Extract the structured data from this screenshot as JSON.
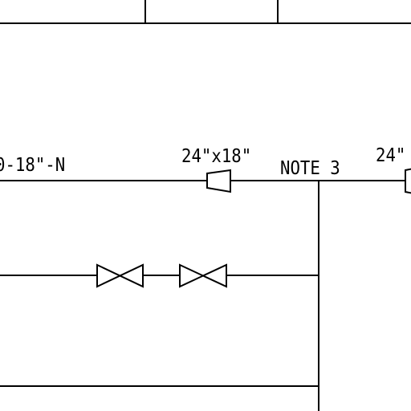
{
  "diagram": {
    "type": "piping-drawing-fragment",
    "labels": {
      "line_tag": "0-18\"-N",
      "reducer_size": "24\"x18\"",
      "note": "NOTE 3",
      "reducer_size_right": "24\""
    },
    "symbols": {
      "reducer_left": "reducer",
      "reducer_right": "reducer",
      "valve_1": "gate-valve",
      "valve_2": "gate-valve"
    },
    "colors": {
      "line": "#000000",
      "background": "#ffffff"
    }
  }
}
